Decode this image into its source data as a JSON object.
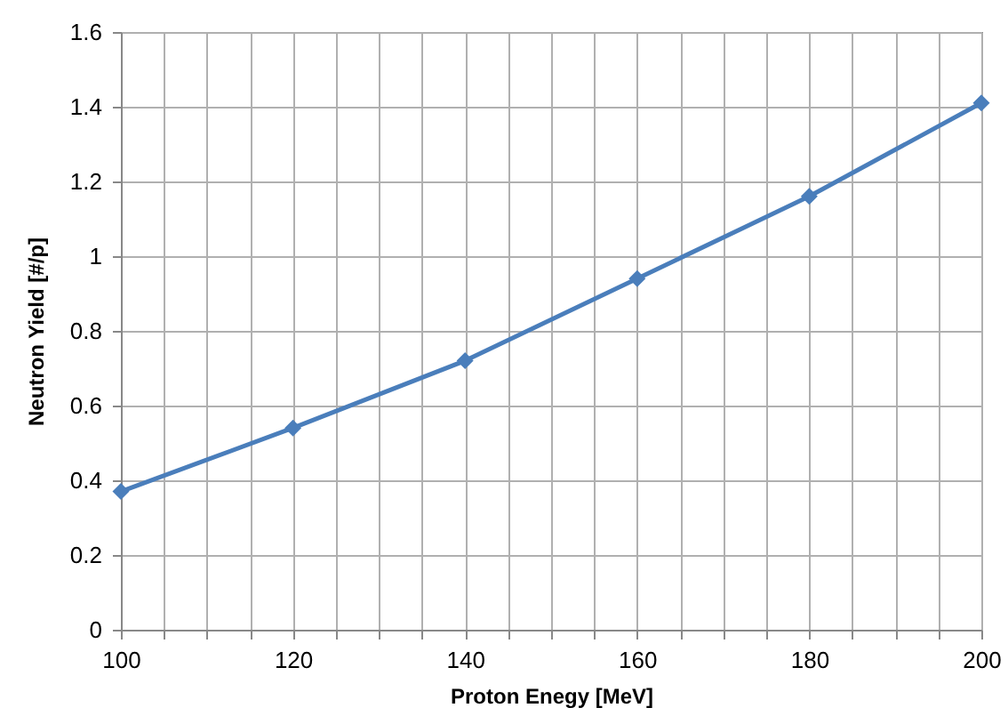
{
  "chart_data": {
    "type": "line",
    "xlabel": "Proton Enegy [MeV]",
    "ylabel": "Neutron Yield [#/p]",
    "x": [
      100,
      120,
      140,
      160,
      180,
      200
    ],
    "series": [
      {
        "color": "#4a7ebb",
        "values": [
          0.37,
          0.54,
          0.72,
          0.94,
          1.16,
          1.41
        ]
      }
    ],
    "xlim": [
      100,
      200
    ],
    "xticks": [
      100,
      {
        "value": 105,
        "label": null
      },
      {
        "value": 110,
        "label": null
      },
      {
        "value": 115,
        "label": null
      },
      120,
      {
        "value": 125,
        "label": null
      },
      {
        "value": 130,
        "label": null
      },
      {
        "value": 135,
        "label": null
      },
      140,
      {
        "value": 145,
        "label": null
      },
      {
        "value": 150,
        "label": null
      },
      {
        "value": 155,
        "label": null
      },
      160,
      {
        "value": 165,
        "label": null
      },
      {
        "value": 170,
        "label": null
      },
      {
        "value": 175,
        "label": null
      },
      180,
      {
        "value": 185,
        "label": null
      },
      {
        "value": 190,
        "label": null
      },
      {
        "value": 195,
        "label": null
      },
      200
    ],
    "ylim": [
      0,
      1.6
    ],
    "yticks": [
      0,
      0.2,
      0.4,
      0.6,
      0.8,
      1,
      1.2,
      1.4,
      1.6
    ],
    "grid": true,
    "marker": "diamond",
    "line_style": "solid"
  }
}
